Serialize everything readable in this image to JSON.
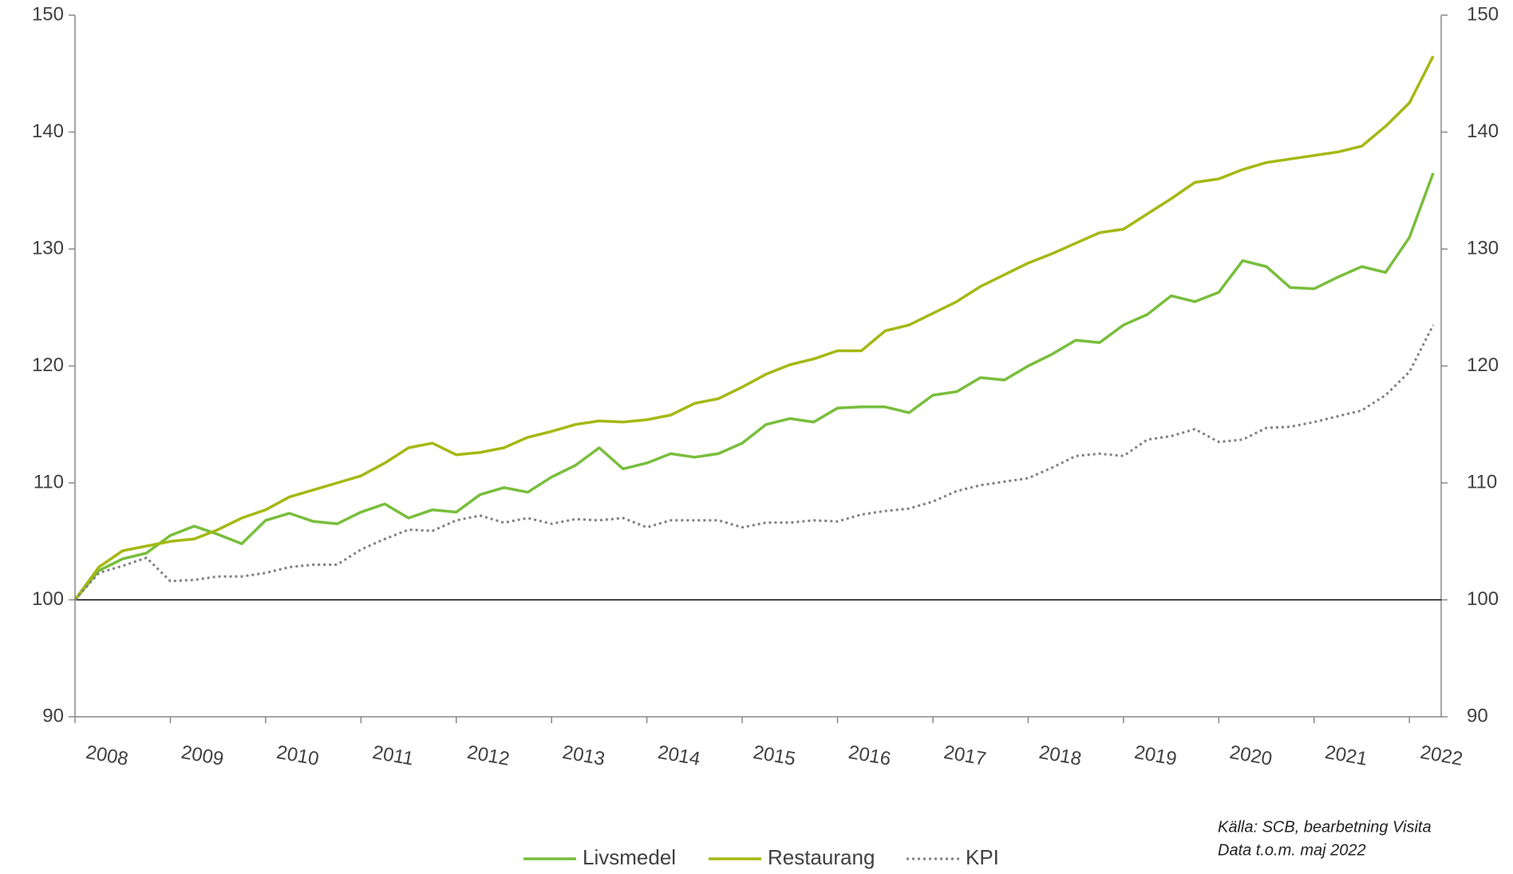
{
  "chart_data": {
    "type": "line",
    "categories": [
      "2008",
      null,
      null,
      null,
      "2009",
      null,
      null,
      null,
      "2010",
      null,
      null,
      null,
      "2011",
      null,
      null,
      null,
      "2012",
      null,
      null,
      null,
      "2013",
      null,
      null,
      null,
      "2014",
      null,
      null,
      null,
      "2015",
      null,
      null,
      null,
      "2016",
      null,
      null,
      null,
      "2017",
      null,
      null,
      null,
      "2018",
      null,
      null,
      null,
      "2019",
      null,
      null,
      null,
      "2020",
      null,
      null,
      null,
      "2021",
      null,
      null,
      null,
      "2022",
      null
    ],
    "series": [
      {
        "name": "Livsmedel",
        "color": "#78be3c",
        "style": "solid",
        "values": [
          100,
          102.5,
          103.5,
          104,
          105.5,
          106.3,
          105.6,
          104.8,
          106.8,
          107.4,
          106.7,
          106.5,
          107.5,
          108.2,
          107,
          107.7,
          107.5,
          109,
          109.6,
          109.2,
          110.5,
          111.5,
          113,
          111.2,
          111.7,
          112.5,
          112.2,
          112.5,
          113.4,
          115,
          115.5,
          115.2,
          116.4,
          116.5,
          116.5,
          116,
          117.5,
          117.8,
          119,
          118.8,
          120,
          121,
          122.2,
          122,
          123.5,
          124.4,
          126,
          125.5,
          126.3,
          129,
          128.5,
          126.7,
          126.6,
          127.6,
          128.5,
          128,
          131,
          136.5
        ]
      },
      {
        "name": "Restaurang",
        "color": "#a5b813",
        "style": "solid",
        "values": [
          100,
          102.8,
          104.2,
          104.6,
          105,
          105.2,
          106,
          107,
          107.7,
          108.8,
          109.4,
          110,
          110.6,
          111.7,
          113,
          113.4,
          112.4,
          112.6,
          113,
          113.9,
          114.4,
          115,
          115.3,
          115.2,
          115.4,
          115.8,
          116.8,
          117.2,
          118.2,
          119.3,
          120.1,
          120.6,
          121.3,
          121.3,
          123,
          123.5,
          124.5,
          125.5,
          126.8,
          127.8,
          128.8,
          129.6,
          130.5,
          131.4,
          131.7,
          133,
          134.3,
          135.7,
          136,
          136.8,
          137.4,
          137.7,
          138,
          138.3,
          138.8,
          140.5,
          142.5,
          146.5
        ]
      },
      {
        "name": "KPI",
        "color": "#808080",
        "style": "dotted",
        "values": [
          100,
          102.3,
          102.9,
          103.6,
          101.6,
          101.7,
          102,
          102,
          102.3,
          102.8,
          103,
          103,
          104.3,
          105.2,
          106,
          105.9,
          106.8,
          107.2,
          106.6,
          107,
          106.5,
          106.9,
          106.8,
          107,
          106.2,
          106.8,
          106.8,
          106.8,
          106.2,
          106.6,
          106.6,
          106.8,
          106.7,
          107.3,
          107.6,
          107.8,
          108.4,
          109.3,
          109.8,
          110.1,
          110.4,
          111.3,
          112.3,
          112.5,
          112.3,
          113.7,
          114,
          114.6,
          113.5,
          113.7,
          114.7,
          114.8,
          115.2,
          115.7,
          116.2,
          117.5,
          119.5,
          123.5
        ]
      }
    ],
    "ylim": [
      90,
      150
    ],
    "yticks": [
      90,
      100,
      110,
      120,
      130,
      140,
      150
    ],
    "y2lim": [
      90,
      150
    ],
    "y2ticks": [
      90,
      100,
      110,
      120,
      130,
      140,
      150
    ],
    "reference_line": 100,
    "grid": false,
    "legend": "bottom",
    "source": [
      "Källa: SCB, bearbetning Visita",
      "Data t.o.m. maj 2022"
    ]
  }
}
